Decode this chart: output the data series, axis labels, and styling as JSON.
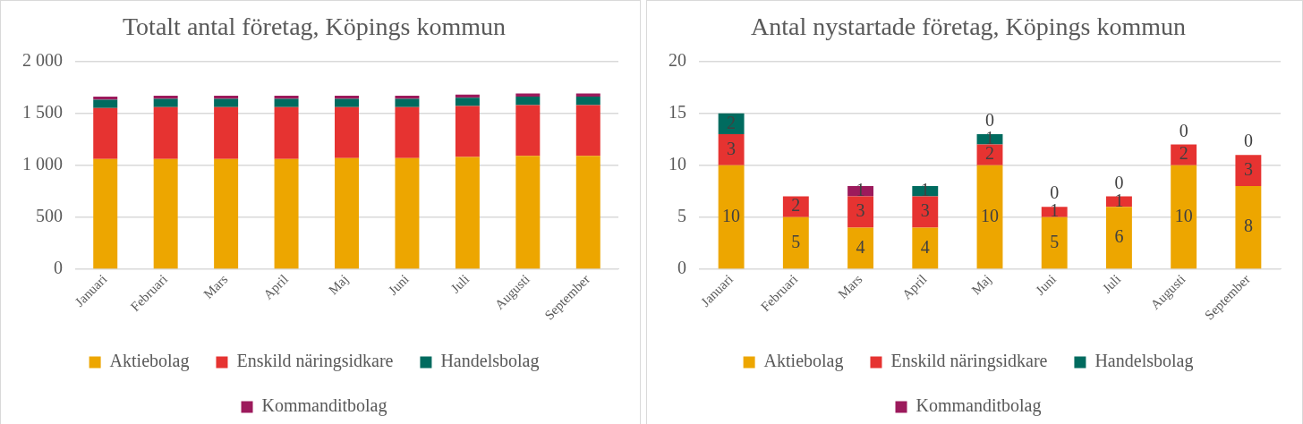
{
  "chart_data": [
    {
      "type": "bar",
      "title": "Totalt antal företag, Köpings kommun",
      "stacked": true,
      "grid": "y",
      "legend": "bottom",
      "categories": [
        "Januari",
        "Februari",
        "Mars",
        "April",
        "Maj",
        "Juni",
        "Juli",
        "Augusti",
        "September"
      ],
      "ylim": [
        0,
        2000
      ],
      "yticks": [
        0,
        500,
        {
          "value": 1000,
          "label": "1 000"
        },
        {
          "value": 1500,
          "label": "1 500"
        },
        {
          "value": 2000,
          "label": "2 000"
        }
      ],
      "series": [
        {
          "name": "Aktiebolag",
          "color": "#eda600",
          "values": [
            1060,
            1060,
            1060,
            1060,
            1070,
            1070,
            1080,
            1090,
            1090
          ]
        },
        {
          "name": "Enskild näringsidkare",
          "color": "#e63331",
          "values": [
            490,
            500,
            500,
            500,
            490,
            490,
            490,
            490,
            490
          ]
        },
        {
          "name": "Handelsbolag",
          "color": "#006b5f",
          "values": [
            80,
            80,
            80,
            80,
            80,
            80,
            80,
            80,
            80
          ]
        },
        {
          "name": "Kommanditbolag",
          "color": "#9c1a5c",
          "values": [
            30,
            30,
            30,
            30,
            30,
            30,
            30,
            30,
            30
          ]
        }
      ]
    },
    {
      "type": "bar",
      "title": "Antal nystartade företag, Köpings kommun",
      "stacked": true,
      "grid": "y",
      "legend": "bottom",
      "data_labels": true,
      "categories": [
        "Januari",
        "Februari",
        "Mars",
        "April",
        "Maj",
        "Juni",
        "Juli",
        "Augusti",
        "September"
      ],
      "ylim": [
        0,
        20
      ],
      "yticks": [
        0,
        5,
        10,
        15,
        20
      ],
      "series": [
        {
          "name": "Aktiebolag",
          "color": "#eda600",
          "values": [
            10,
            5,
            4,
            4,
            10,
            5,
            6,
            10,
            8
          ]
        },
        {
          "name": "Enskild näringsidkare",
          "color": "#e63331",
          "values": [
            3,
            2,
            3,
            3,
            2,
            1,
            1,
            2,
            3
          ]
        },
        {
          "name": "Handelsbolag",
          "color": "#006b5f",
          "values": [
            2,
            null,
            null,
            1,
            1,
            0,
            0,
            0,
            0
          ]
        },
        {
          "name": "Kommanditbolag",
          "color": "#9c1a5c",
          "values": [
            null,
            null,
            1,
            null,
            0,
            null,
            null,
            null,
            null
          ]
        }
      ]
    }
  ]
}
